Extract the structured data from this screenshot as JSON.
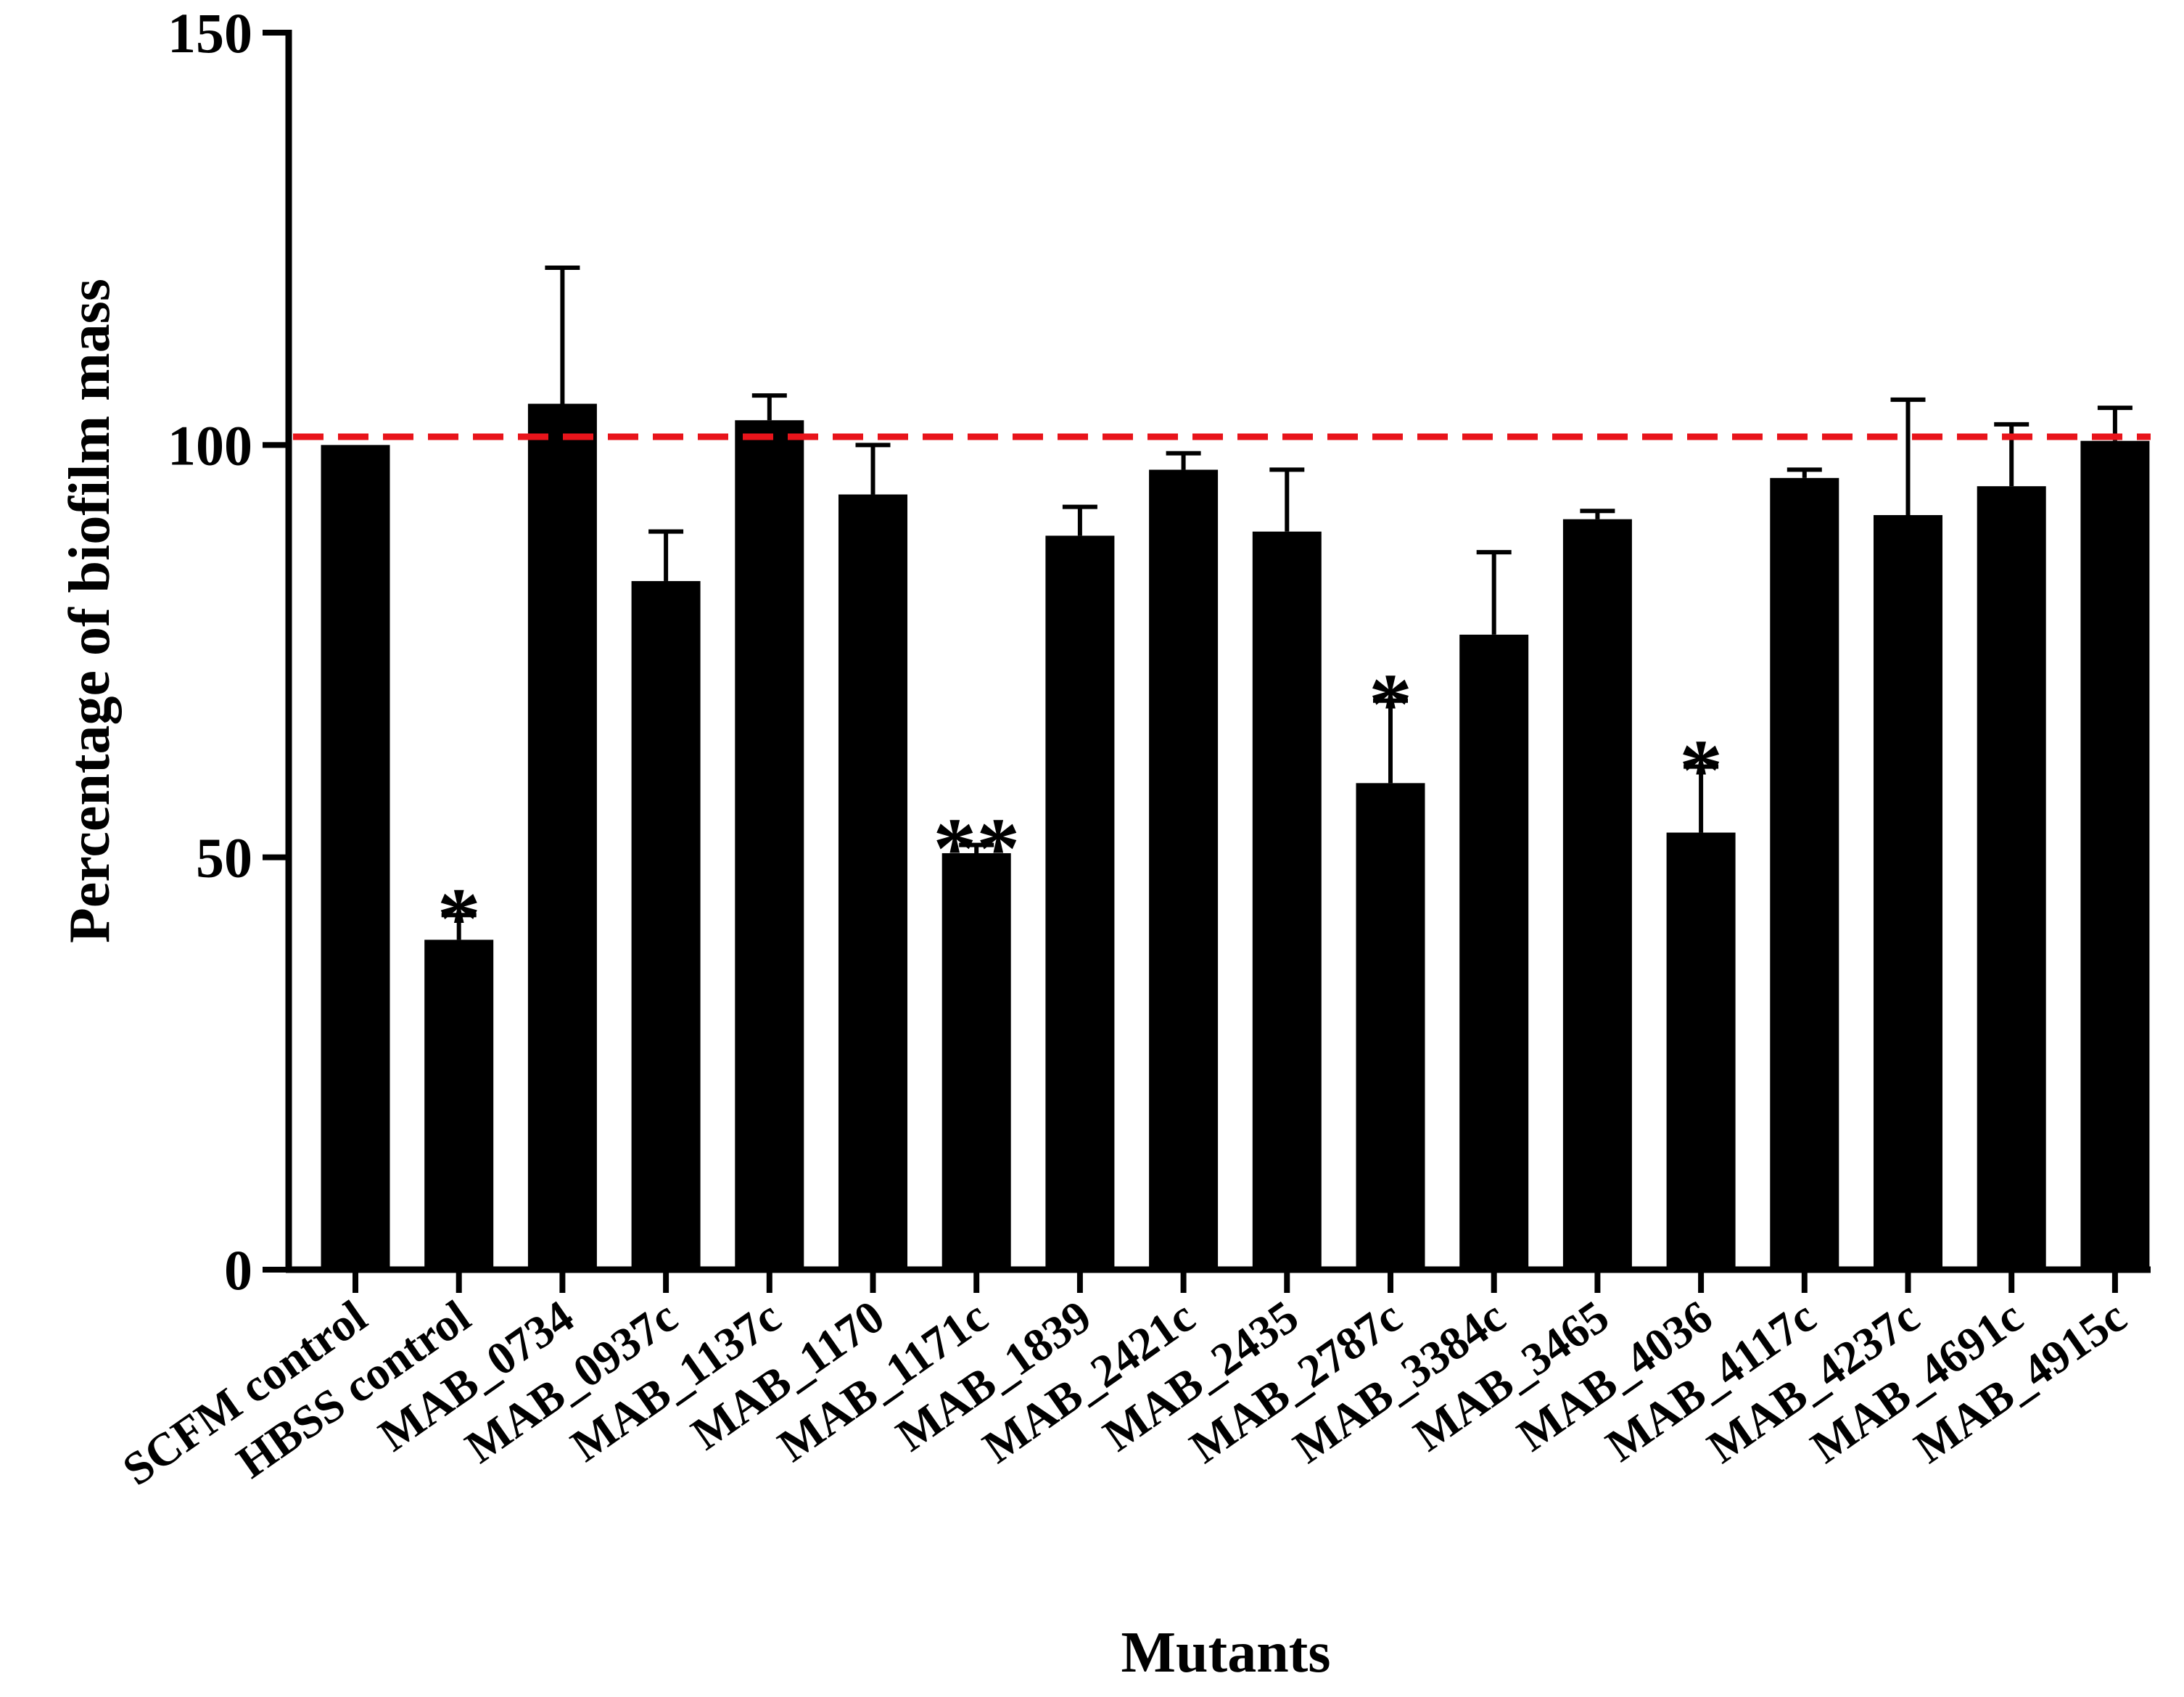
{
  "chart_data": {
    "type": "bar",
    "title": "",
    "xlabel": "Mutants",
    "ylabel": "Percentage of biofilm  mass",
    "ylim": [
      0,
      150
    ],
    "yticks": [
      0,
      50,
      100,
      150
    ],
    "grid": false,
    "reference_line": {
      "value": 101,
      "color": "#e8141b",
      "style": "dashed"
    },
    "categories": [
      "SCFM control",
      "HBSS control",
      "MAB_0734",
      "MAB_0937c",
      "MAB_1137c",
      "MAB_1170",
      "MAB_1171c",
      "MAB_1839",
      "MAB_2421c",
      "MAB_2435",
      "MAB_2787c",
      "MAB_3384c",
      "MAB_3465",
      "MAB_4036",
      "MAB_4117c",
      "MAB_4237c",
      "MAB_4691c",
      "MAB_4915c"
    ],
    "values": [
      100,
      40,
      105,
      83.5,
      103,
      94,
      50.5,
      89,
      97,
      89.5,
      59,
      77,
      91,
      53,
      96,
      91.5,
      95,
      100.5
    ],
    "errors": [
      0,
      3,
      16.5,
      6,
      3,
      6,
      1,
      3.5,
      2,
      7.5,
      10,
      10,
      1,
      8,
      1,
      14,
      7.5,
      4
    ],
    "significance": [
      "",
      "*",
      "",
      "",
      "",
      "",
      "**",
      "",
      "",
      "",
      "*",
      "",
      "",
      "*",
      "",
      "",
      "",
      ""
    ],
    "bar_color": "#000000"
  }
}
